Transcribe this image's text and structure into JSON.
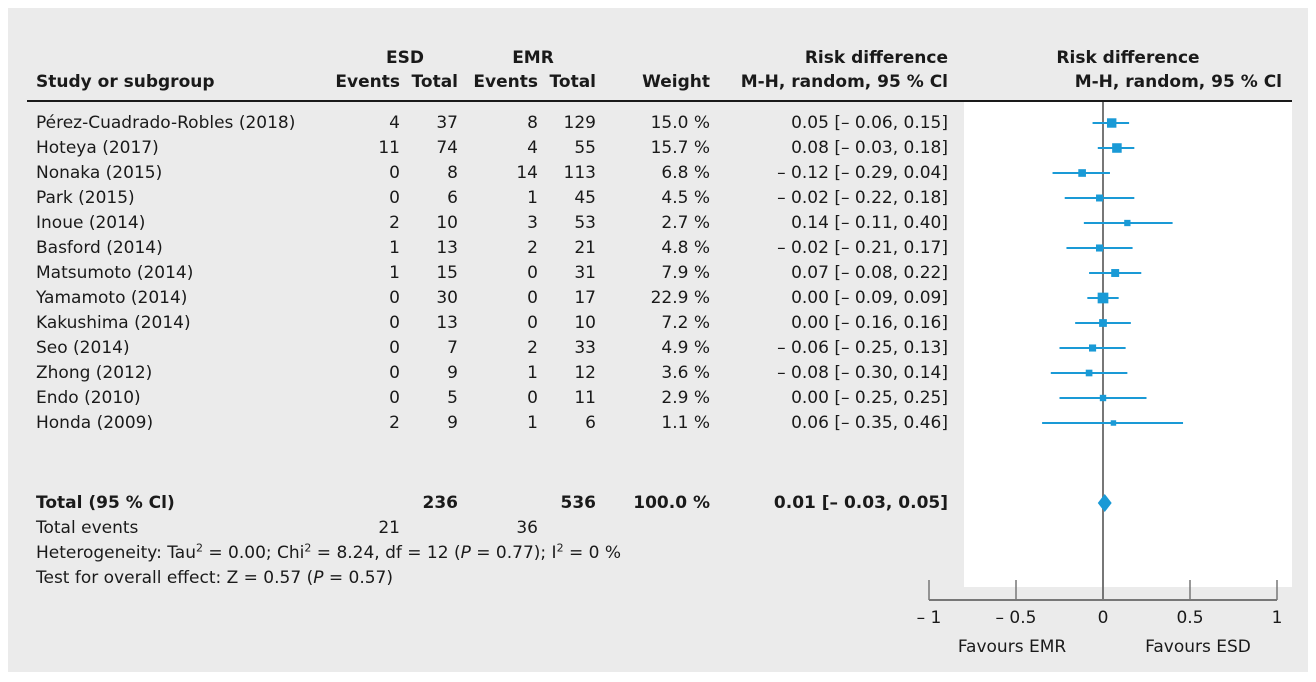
{
  "header": {
    "col_study": "Study or subgroup",
    "group_esd": "ESD",
    "group_emr": "EMR",
    "col_events": "Events",
    "col_total": "Total",
    "col_weight": "Weight",
    "rd_title": "Risk difference",
    "rd_method": "M-H, random, 95 % Cl",
    "plot_title": "Risk difference",
    "plot_method": "M-H, random, 95 % Cl"
  },
  "studies": [
    {
      "name": "Pérez-Cuadrado-Robles (2018)",
      "esd_events": "4",
      "esd_total": "37",
      "emr_events": "8",
      "emr_total": "129",
      "weight": "15.0 %",
      "ci_text": "0.05 [– 0.06, 0.15]",
      "rd": 0.05,
      "lo": -0.06,
      "hi": 0.15,
      "w": 15.0
    },
    {
      "name": "Hoteya (2017)",
      "esd_events": "11",
      "esd_total": "74",
      "emr_events": "4",
      "emr_total": "55",
      "weight": "15.7 %",
      "ci_text": "0.08 [– 0.03, 0.18]",
      "rd": 0.08,
      "lo": -0.03,
      "hi": 0.18,
      "w": 15.7
    },
    {
      "name": "Nonaka (2015)",
      "esd_events": "0",
      "esd_total": "8",
      "emr_events": "14",
      "emr_total": "113",
      "weight": "6.8 %",
      "ci_text": "– 0.12 [– 0.29, 0.04]",
      "rd": -0.12,
      "lo": -0.29,
      "hi": 0.04,
      "w": 6.8
    },
    {
      "name": "Park (2015)",
      "esd_events": "0",
      "esd_total": "6",
      "emr_events": "1",
      "emr_total": "45",
      "weight": "4.5 %",
      "ci_text": "– 0.02 [– 0.22, 0.18]",
      "rd": -0.02,
      "lo": -0.22,
      "hi": 0.18,
      "w": 4.5
    },
    {
      "name": "Inoue (2014)",
      "esd_events": "2",
      "esd_total": "10",
      "emr_events": "3",
      "emr_total": "53",
      "weight": "2.7 %",
      "ci_text": "0.14 [– 0.11, 0.40]",
      "rd": 0.14,
      "lo": -0.11,
      "hi": 0.4,
      "w": 2.7
    },
    {
      "name": "Basford (2014)",
      "esd_events": "1",
      "esd_total": "13",
      "emr_events": "2",
      "emr_total": "21",
      "weight": "4.8 %",
      "ci_text": "– 0.02 [– 0.21, 0.17]",
      "rd": -0.02,
      "lo": -0.21,
      "hi": 0.17,
      "w": 4.8
    },
    {
      "name": "Matsumoto (2014)",
      "esd_events": "1",
      "esd_total": "15",
      "emr_events": "0",
      "emr_total": "31",
      "weight": "7.9 %",
      "ci_text": "0.07 [– 0.08, 0.22]",
      "rd": 0.07,
      "lo": -0.08,
      "hi": 0.22,
      "w": 7.9
    },
    {
      "name": "Yamamoto (2014)",
      "esd_events": "0",
      "esd_total": "30",
      "emr_events": "0",
      "emr_total": "17",
      "weight": "22.9 %",
      "ci_text": "0.00 [– 0.09, 0.09]",
      "rd": 0.0,
      "lo": -0.09,
      "hi": 0.09,
      "w": 22.9
    },
    {
      "name": "Kakushima (2014)",
      "esd_events": "0",
      "esd_total": "13",
      "emr_events": "0",
      "emr_total": "10",
      "weight": "7.2 %",
      "ci_text": "0.00 [– 0.16, 0.16]",
      "rd": 0.0,
      "lo": -0.16,
      "hi": 0.16,
      "w": 7.2
    },
    {
      "name": "Seo (2014)",
      "esd_events": "0",
      "esd_total": "7",
      "emr_events": "2",
      "emr_total": "33",
      "weight": "4.9 %",
      "ci_text": "– 0.06 [– 0.25, 0.13]",
      "rd": -0.06,
      "lo": -0.25,
      "hi": 0.13,
      "w": 4.9
    },
    {
      "name": "Zhong (2012)",
      "esd_events": "0",
      "esd_total": "9",
      "emr_events": "1",
      "emr_total": "12",
      "weight": "3.6 %",
      "ci_text": "– 0.08 [– 0.30, 0.14]",
      "rd": -0.08,
      "lo": -0.3,
      "hi": 0.14,
      "w": 3.6
    },
    {
      "name": "Endo (2010)",
      "esd_events": "0",
      "esd_total": "5",
      "emr_events": "0",
      "emr_total": "11",
      "weight": "2.9 %",
      "ci_text": "0.00 [– 0.25, 0.25]",
      "rd": 0.0,
      "lo": -0.25,
      "hi": 0.25,
      "w": 2.9
    },
    {
      "name": "Honda (2009)",
      "esd_events": "2",
      "esd_total": "9",
      "emr_events": "1",
      "emr_total": "6",
      "weight": "1.1 %",
      "ci_text": "0.06 [– 0.35, 0.46]",
      "rd": 0.06,
      "lo": -0.35,
      "hi": 0.46,
      "w": 1.1
    }
  ],
  "total": {
    "label": "Total (95 % Cl)",
    "esd_total": "236",
    "emr_total": "536",
    "weight": "100.0 %",
    "ci_text": "0.01 [– 0.03, 0.05]",
    "rd": 0.01,
    "lo": -0.03,
    "hi": 0.05
  },
  "total_events": {
    "label": "Total events",
    "esd": "21",
    "emr": "36"
  },
  "heterogeneity": {
    "prefix": "Heterogeneity: Tau",
    "tau_value": " = 0.00; Chi",
    "chi_value": " = 8.24, df = 12 (",
    "p_label": "P",
    "p_value": " = 0.77); I",
    "i_value": " = 0 %",
    "sup": "2"
  },
  "overall_effect": {
    "prefix": "Test for overall effect: Z = 0.57 (",
    "p_label": "P",
    "p_value": " = 0.57)"
  },
  "axis": {
    "ticks": [
      -1,
      -0.5,
      0,
      0.5,
      1
    ],
    "tick_labels": [
      "– 1",
      "– 0.5",
      "0",
      "0.5",
      "1"
    ],
    "favours_left": "Favours EMR",
    "favours_right": "Favours ESD"
  },
  "colors": {
    "marker": "#1a9ad6",
    "axis": "#777777",
    "text": "#1a1a1a",
    "panel": "#ebebeb"
  },
  "chart_data": {
    "type": "forest",
    "xlim": [
      -1,
      1
    ],
    "xticks": [
      -1,
      -0.5,
      0,
      0.5,
      1
    ],
    "studies": [
      "Pérez-Cuadrado-Robles (2018)",
      "Hoteya (2017)",
      "Nonaka (2015)",
      "Park (2015)",
      "Inoue (2014)",
      "Basford (2014)",
      "Matsumoto (2014)",
      "Yamamoto (2014)",
      "Kakushima (2014)",
      "Seo (2014)",
      "Zhong (2012)",
      "Endo (2010)",
      "Honda (2009)"
    ],
    "estimate": [
      0.05,
      0.08,
      -0.12,
      -0.02,
      0.14,
      -0.02,
      0.07,
      0.0,
      0.0,
      -0.06,
      -0.08,
      0.0,
      0.06
    ],
    "ci_low": [
      -0.06,
      -0.03,
      -0.29,
      -0.22,
      -0.11,
      -0.21,
      -0.08,
      -0.09,
      -0.16,
      -0.25,
      -0.3,
      -0.25,
      -0.35
    ],
    "ci_high": [
      0.15,
      0.18,
      0.04,
      0.18,
      0.4,
      0.17,
      0.22,
      0.09,
      0.16,
      0.13,
      0.14,
      0.25,
      0.46
    ],
    "weights": [
      15.0,
      15.7,
      6.8,
      4.5,
      2.7,
      4.8,
      7.9,
      22.9,
      7.2,
      4.9,
      3.6,
      2.9,
      1.1
    ],
    "pooled": {
      "estimate": 0.01,
      "ci_low": -0.03,
      "ci_high": 0.05
    }
  }
}
